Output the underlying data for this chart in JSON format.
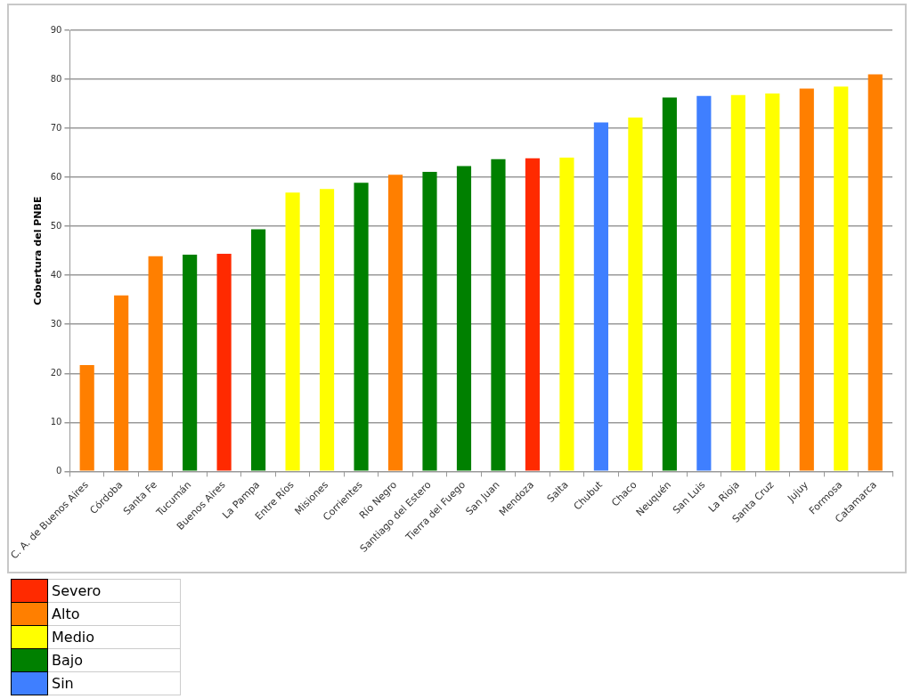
{
  "chart_data": {
    "type": "bar",
    "ylabel": "Cobertura del PNBE",
    "categories": [
      "C. A. de Buenos Aires",
      "Córdoba",
      "Santa Fe",
      "Tucumán",
      "Buenos Aires",
      "La Pampa",
      "Entre Ríos",
      "Misiones",
      "Corrientes",
      "Río Negro",
      "Santiago del Estero",
      "Tierra del Fuego",
      "San Juan",
      "Mendoza",
      "Salta",
      "Chubut",
      "Chaco",
      "Neuquén",
      "San Luis",
      "La Rioja",
      "Santa Cruz",
      "Jujuy",
      "Formosa",
      "Catamarca"
    ],
    "series": [
      {
        "name": "Severo",
        "color": "#ff2a00",
        "values": [
          null,
          null,
          null,
          null,
          44.4,
          null,
          null,
          null,
          null,
          null,
          null,
          null,
          null,
          63.9,
          null,
          null,
          null,
          null,
          null,
          null,
          null,
          null,
          null,
          null
        ]
      },
      {
        "name": "Alto",
        "color": "#ff7f00",
        "values": [
          21.7,
          35.9,
          43.9,
          null,
          null,
          null,
          null,
          null,
          null,
          60.5,
          null,
          null,
          null,
          null,
          null,
          null,
          null,
          null,
          null,
          null,
          null,
          78.1,
          null,
          81.0
        ]
      },
      {
        "name": "Medio",
        "color": "#ffff00",
        "values": [
          null,
          null,
          null,
          null,
          null,
          null,
          56.9,
          57.6,
          null,
          null,
          null,
          null,
          null,
          null,
          64.0,
          null,
          72.2,
          null,
          null,
          76.8,
          77.1,
          null,
          78.5,
          null
        ]
      },
      {
        "name": "Bajo",
        "color": "#008000",
        "values": [
          null,
          null,
          null,
          44.2,
          null,
          49.4,
          null,
          null,
          58.9,
          null,
          61.1,
          62.3,
          63.7,
          null,
          null,
          null,
          null,
          76.3,
          null,
          null,
          null,
          null,
          null,
          null
        ]
      },
      {
        "name": "Sin",
        "color": "#3f7fff",
        "values": [
          null,
          null,
          null,
          null,
          null,
          null,
          null,
          null,
          null,
          null,
          null,
          null,
          null,
          null,
          null,
          71.2,
          null,
          null,
          76.6,
          null,
          null,
          null,
          null,
          null
        ]
      }
    ],
    "ylim": [
      0,
      90
    ],
    "yticks": [
      0,
      10,
      20,
      30,
      40,
      50,
      60,
      70,
      80,
      90
    ],
    "grid": "y",
    "legend": "bottom left"
  }
}
